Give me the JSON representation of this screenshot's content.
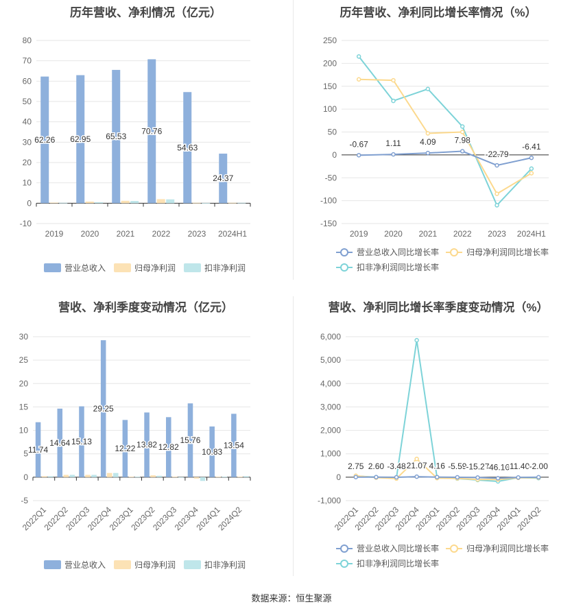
{
  "source": "数据来源：恒生聚源",
  "colors": {
    "revenue": "#8eb0dc",
    "net_profit": "#fce2b5",
    "deducted_profit": "#bfe6ea",
    "rev_growth_line": "#7f9fd0",
    "np_growth_line": "#fcd98d",
    "dp_growth_line": "#7dd3d8"
  },
  "chart_data": [
    {
      "id": "annual-bar",
      "type": "bar",
      "title": "历年营收、净利情况（亿元）",
      "categories": [
        "2019",
        "2020",
        "2021",
        "2022",
        "2023",
        "2024H1"
      ],
      "ylim": [
        -10,
        80
      ],
      "yticks": [
        -10,
        0,
        10,
        20,
        30,
        40,
        50,
        60,
        70,
        80
      ],
      "series": [
        {
          "name": "营业总收入",
          "values": [
            62.26,
            62.95,
            65.53,
            70.76,
            54.63,
            24.37
          ],
          "labels": [
            "62.26",
            "62.95",
            "65.53",
            "70.76",
            "54.63",
            "24.37"
          ]
        },
        {
          "name": "归母净利润",
          "values": [
            0.3,
            0.8,
            1.2,
            2.0,
            0.2,
            0.2
          ]
        },
        {
          "name": "扣非净利润",
          "values": [
            0.2,
            0.5,
            1.1,
            1.9,
            0.1,
            0.2
          ]
        }
      ]
    },
    {
      "id": "annual-growth",
      "type": "line",
      "title": "历年营收、净利同比增长率情况（%）",
      "categories": [
        "2019",
        "2020",
        "2021",
        "2022",
        "2023",
        "2024H1"
      ],
      "ylim": [
        -150,
        250
      ],
      "yticks": [
        -150,
        -100,
        -50,
        0,
        50,
        100,
        150,
        200,
        250
      ],
      "series": [
        {
          "name": "营业总收入同比增长率",
          "values": [
            -0.67,
            1.11,
            4.09,
            7.98,
            -22.79,
            -6.41
          ],
          "labels": [
            "-0.67",
            "1.11",
            "4.09",
            "7.98",
            "-22.79",
            "-6.41"
          ]
        },
        {
          "name": "归母净利润同比增长率",
          "values": [
            165,
            163,
            47,
            50,
            -85,
            -40
          ]
        },
        {
          "name": "扣非净利润同比增长率",
          "values": [
            215,
            118,
            144,
            62,
            -110,
            -30
          ]
        }
      ]
    },
    {
      "id": "quarterly-bar",
      "type": "bar",
      "title": "营收、净利季度变动情况（亿元）",
      "categories": [
        "2022Q1",
        "2022Q2",
        "2022Q3",
        "2022Q4",
        "2023Q1",
        "2023Q2",
        "2023Q3",
        "2023Q4",
        "2024Q1",
        "2024Q2"
      ],
      "ylim": [
        -5,
        30
      ],
      "yticks": [
        -5,
        0,
        5,
        10,
        15,
        20,
        25,
        30
      ],
      "series": [
        {
          "name": "营业总收入",
          "values": [
            11.74,
            14.64,
            15.13,
            29.25,
            12.22,
            13.82,
            12.82,
            15.76,
            10.83,
            13.54
          ],
          "labels": [
            "11.74",
            "14.64",
            "15.13",
            "29.25",
            "12.22",
            "13.82",
            "12.82",
            "15.76",
            "10.83",
            "13.54"
          ]
        },
        {
          "name": "归母净利润",
          "values": [
            0.2,
            0.5,
            0.5,
            0.9,
            0.1,
            0.4,
            0.1,
            -0.3,
            0.1,
            0.1
          ]
        },
        {
          "name": "扣非净利润",
          "values": [
            0.2,
            0.5,
            0.5,
            0.9,
            0.1,
            0.3,
            0.0,
            -0.8,
            0.1,
            0.2
          ]
        }
      ]
    },
    {
      "id": "quarterly-growth",
      "type": "line",
      "title": "营收、净利同比增长率季度变动情况（%）",
      "categories": [
        "2022Q1",
        "2022Q2",
        "2022Q3",
        "2022Q4",
        "2023Q1",
        "2023Q2",
        "2023Q3",
        "2023Q4",
        "2024Q1",
        "2024Q2"
      ],
      "ylim": [
        -1000,
        6000
      ],
      "yticks": [
        -1000,
        0,
        1000,
        2000,
        3000,
        4000,
        5000,
        6000
      ],
      "ytick_labels": [
        "-1,000",
        "0",
        "1,000",
        "2,000",
        "3,000",
        "4,000",
        "5,000",
        "6,000"
      ],
      "series": [
        {
          "name": "营业总收入同比增长率",
          "values": [
            2.75,
            2.6,
            -3.48,
            21.07,
            4.16,
            -5.59,
            -15.27,
            -46.16,
            -11.4,
            -2.0
          ],
          "labels": [
            "2.75",
            "2.60",
            "-3.48",
            "21.07",
            "4.16",
            "-5.59",
            "-15.27",
            "-46.16",
            "-11.40",
            "-2.00"
          ]
        },
        {
          "name": "归母净利润同比增长率",
          "values": [
            60,
            -20,
            -60,
            780,
            -40,
            -50,
            -100,
            -100,
            -30,
            -20
          ]
        },
        {
          "name": "扣非净利润同比增长率",
          "values": [
            50,
            0,
            -30,
            5850,
            -20,
            -60,
            -120,
            -180,
            -20,
            -40
          ]
        }
      ]
    }
  ]
}
